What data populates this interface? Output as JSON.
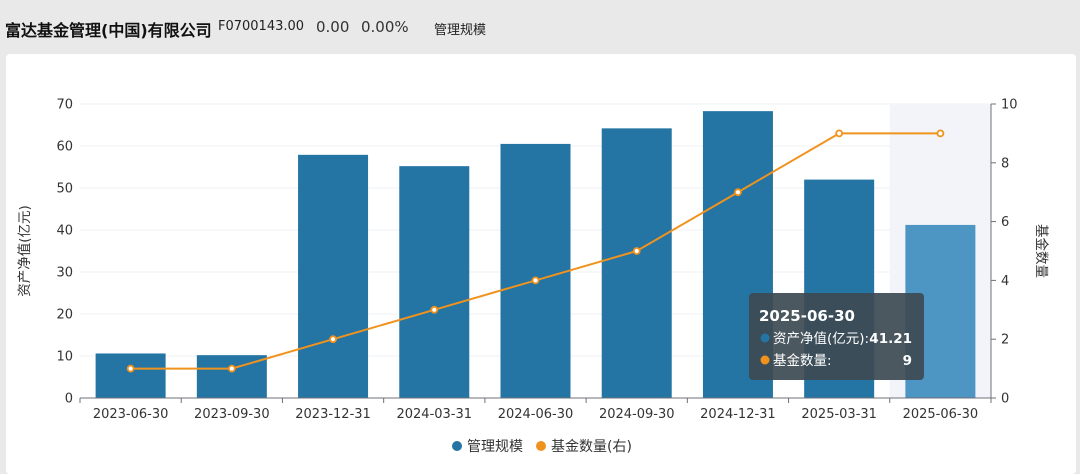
{
  "header": {
    "company_name": "富达基金管理(中国)有限公司",
    "code": "F0700143.00",
    "value": "0.00",
    "change_pct": "0.00%",
    "tab_label": "管理规模"
  },
  "chart_data": {
    "type": "bar",
    "categories": [
      "2023-06-30",
      "2023-09-30",
      "2023-12-31",
      "2024-03-31",
      "2024-06-30",
      "2024-09-30",
      "2024-12-31",
      "2025-03-31",
      "2025-06-30"
    ],
    "series": [
      {
        "name": "管理规模",
        "type": "bar",
        "axis": "left",
        "color": "#2474a4",
        "values": [
          10.6,
          10.2,
          57.9,
          55.2,
          60.5,
          64.2,
          68.3,
          52.0,
          41.21
        ]
      },
      {
        "name": "基金数量(右)",
        "type": "line",
        "axis": "right",
        "color": "#f0931e",
        "values": [
          1,
          1,
          2,
          3,
          4,
          5,
          7,
          9,
          9
        ]
      }
    ],
    "ylabel_left": "资产净值(亿元)",
    "ylabel_right": "基金数量",
    "ylim_left": [
      0,
      70
    ],
    "ylim_right": [
      0,
      10
    ],
    "yticks_left": [
      0,
      10,
      20,
      30,
      40,
      50,
      60,
      70
    ],
    "yticks_right": [
      0,
      2,
      4,
      6,
      8,
      10
    ],
    "grid": true,
    "legend_position": "bottom-center",
    "highlight_index": 8
  },
  "tooltip": {
    "title": "2025-06-30",
    "row1_label": "资产净值(亿元):",
    "row1_value": "41.21",
    "row2_label": "基金数量:",
    "row2_value": "9"
  },
  "colors": {
    "bar": "#2474a4",
    "bar_highlight": "#4d95c2",
    "line": "#f0931e",
    "tooltip_bg": "#3d4a52"
  }
}
